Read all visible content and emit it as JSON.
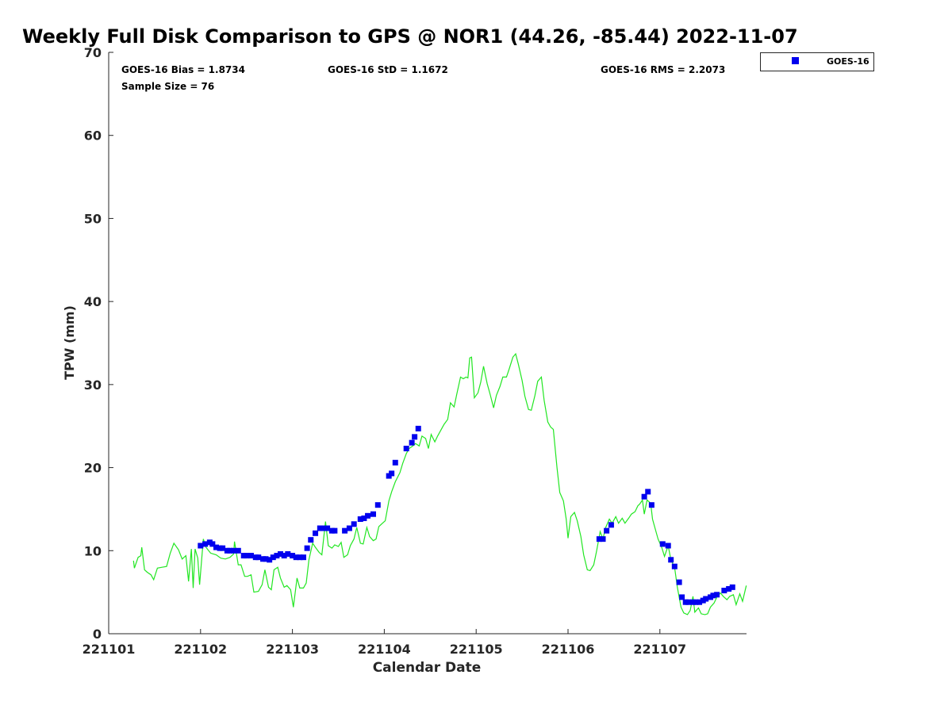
{
  "chart_data": {
    "type": "line",
    "title": "Weekly Full Disk Comparison to GPS @ NOR1 (44.26, -85.44) 2022-11-07",
    "xlabel": "Calendar Date",
    "ylabel": "TPW (mm)",
    "x_units": "days since 221101",
    "xlim": [
      0,
      6.94
    ],
    "ylim": [
      0,
      70
    ],
    "x_ticks": [
      0,
      1,
      2,
      3,
      4,
      5,
      6
    ],
    "x_tick_labels": [
      "221101",
      "221102",
      "221103",
      "221104",
      "221105",
      "221106",
      "221107"
    ],
    "y_ticks": [
      0,
      10,
      20,
      30,
      40,
      50,
      60,
      70
    ],
    "y_tick_labels": [
      "0",
      "10",
      "20",
      "30",
      "40",
      "50",
      "60",
      "70"
    ],
    "grid": false,
    "legend": {
      "placement": "top-right-outside",
      "entries": [
        "GOES-16"
      ]
    },
    "stats": {
      "bias": "GOES-16 Bias = 1.8734",
      "std": "GOES-16 StD = 1.1672",
      "rms": "GOES-16 RMS = 2.2073",
      "sample": "Sample Size = 76"
    },
    "series": [
      {
        "name": "GPS",
        "style": "line",
        "color": "#22e622",
        "points": [
          [
            0.27,
            8.8
          ],
          [
            0.28,
            7.9
          ],
          [
            0.32,
            9.2
          ],
          [
            0.35,
            9.4
          ],
          [
            0.36,
            10.4
          ],
          [
            0.39,
            7.7
          ],
          [
            0.42,
            7.4
          ],
          [
            0.46,
            7.1
          ],
          [
            0.49,
            6.5
          ],
          [
            0.53,
            7.9
          ],
          [
            0.58,
            8.0
          ],
          [
            0.63,
            8.1
          ],
          [
            0.67,
            9.7
          ],
          [
            0.71,
            10.9
          ],
          [
            0.76,
            10.1
          ],
          [
            0.8,
            9.0
          ],
          [
            0.84,
            9.4
          ],
          [
            0.87,
            6.3
          ],
          [
            0.9,
            10.2
          ],
          [
            0.92,
            5.5
          ],
          [
            0.94,
            10.2
          ],
          [
            0.97,
            9.1
          ],
          [
            0.99,
            5.9
          ],
          [
            1.03,
            11.4
          ],
          [
            1.06,
            10.4
          ],
          [
            1.11,
            9.7
          ],
          [
            1.17,
            9.5
          ],
          [
            1.22,
            9.1
          ],
          [
            1.27,
            9.0
          ],
          [
            1.32,
            9.2
          ],
          [
            1.36,
            9.6
          ],
          [
            1.37,
            11.1
          ],
          [
            1.41,
            8.3
          ],
          [
            1.44,
            8.3
          ],
          [
            1.48,
            6.9
          ],
          [
            1.51,
            6.9
          ],
          [
            1.55,
            7.1
          ],
          [
            1.58,
            5.0
          ],
          [
            1.63,
            5.1
          ],
          [
            1.67,
            5.9
          ],
          [
            1.7,
            7.7
          ],
          [
            1.74,
            5.6
          ],
          [
            1.77,
            5.3
          ],
          [
            1.8,
            7.7
          ],
          [
            1.84,
            8.0
          ],
          [
            1.87,
            6.7
          ],
          [
            1.91,
            5.6
          ],
          [
            1.94,
            5.8
          ],
          [
            1.98,
            5.3
          ],
          [
            2.01,
            3.2
          ],
          [
            2.05,
            6.7
          ],
          [
            2.08,
            5.5
          ],
          [
            2.12,
            5.5
          ],
          [
            2.15,
            6.1
          ],
          [
            2.18,
            8.9
          ],
          [
            2.22,
            10.9
          ],
          [
            2.25,
            10.4
          ],
          [
            2.29,
            9.8
          ],
          [
            2.32,
            9.5
          ],
          [
            2.36,
            13.5
          ],
          [
            2.39,
            10.6
          ],
          [
            2.43,
            10.3
          ],
          [
            2.46,
            10.7
          ],
          [
            2.5,
            10.5
          ],
          [
            2.53,
            11.0
          ],
          [
            2.56,
            9.2
          ],
          [
            2.6,
            9.5
          ],
          [
            2.63,
            10.6
          ],
          [
            2.67,
            11.4
          ],
          [
            2.7,
            12.8
          ],
          [
            2.74,
            10.9
          ],
          [
            2.77,
            10.8
          ],
          [
            2.81,
            12.8
          ],
          [
            2.84,
            11.7
          ],
          [
            2.88,
            11.2
          ],
          [
            2.91,
            11.4
          ],
          [
            2.94,
            12.9
          ],
          [
            2.98,
            13.3
          ],
          [
            3.01,
            13.6
          ],
          [
            3.05,
            16.0
          ],
          [
            3.08,
            17.1
          ],
          [
            3.12,
            18.3
          ],
          [
            3.17,
            19.4
          ],
          [
            3.2,
            20.5
          ],
          [
            3.24,
            21.7
          ],
          [
            3.27,
            22.3
          ],
          [
            3.31,
            22.6
          ],
          [
            3.34,
            22.9
          ],
          [
            3.38,
            22.6
          ],
          [
            3.41,
            23.8
          ],
          [
            3.45,
            23.5
          ],
          [
            3.48,
            22.3
          ],
          [
            3.51,
            24.0
          ],
          [
            3.55,
            23.1
          ],
          [
            3.58,
            23.8
          ],
          [
            3.62,
            24.6
          ],
          [
            3.65,
            25.2
          ],
          [
            3.69,
            25.8
          ],
          [
            3.72,
            27.8
          ],
          [
            3.76,
            27.3
          ],
          [
            3.79,
            28.9
          ],
          [
            3.83,
            30.9
          ],
          [
            3.86,
            30.7
          ],
          [
            3.89,
            30.9
          ],
          [
            3.91,
            30.8
          ],
          [
            3.93,
            33.2
          ],
          [
            3.95,
            33.3
          ],
          [
            3.98,
            28.4
          ],
          [
            4.02,
            29.0
          ],
          [
            4.05,
            30.3
          ],
          [
            4.08,
            32.2
          ],
          [
            4.12,
            30.1
          ],
          [
            4.15,
            28.9
          ],
          [
            4.19,
            27.2
          ],
          [
            4.22,
            28.7
          ],
          [
            4.26,
            29.8
          ],
          [
            4.29,
            30.9
          ],
          [
            4.33,
            30.9
          ],
          [
            4.36,
            31.9
          ],
          [
            4.4,
            33.3
          ],
          [
            4.43,
            33.7
          ],
          [
            4.46,
            32.4
          ],
          [
            4.5,
            30.5
          ],
          [
            4.53,
            28.6
          ],
          [
            4.57,
            27.0
          ],
          [
            4.6,
            26.9
          ],
          [
            4.64,
            28.7
          ],
          [
            4.67,
            30.4
          ],
          [
            4.71,
            30.9
          ],
          [
            4.74,
            28.1
          ],
          [
            4.78,
            25.5
          ],
          [
            4.81,
            24.9
          ],
          [
            4.84,
            24.6
          ],
          [
            4.88,
            20.0
          ],
          [
            4.91,
            17.0
          ],
          [
            4.95,
            16.0
          ],
          [
            4.98,
            13.8
          ],
          [
            5.0,
            11.5
          ],
          [
            5.03,
            14.1
          ],
          [
            5.07,
            14.6
          ],
          [
            5.1,
            13.6
          ],
          [
            5.14,
            11.7
          ],
          [
            5.17,
            9.5
          ],
          [
            5.21,
            7.7
          ],
          [
            5.24,
            7.6
          ],
          [
            5.28,
            8.3
          ],
          [
            5.31,
            9.9
          ],
          [
            5.35,
            12.3
          ],
          [
            5.38,
            11.4
          ],
          [
            5.41,
            12.8
          ],
          [
            5.45,
            13.8
          ],
          [
            5.48,
            13.3
          ],
          [
            5.52,
            14.1
          ],
          [
            5.55,
            13.3
          ],
          [
            5.59,
            13.9
          ],
          [
            5.62,
            13.3
          ],
          [
            5.66,
            13.9
          ],
          [
            5.69,
            14.4
          ],
          [
            5.73,
            14.7
          ],
          [
            5.76,
            15.4
          ],
          [
            5.78,
            15.6
          ],
          [
            5.81,
            16.1
          ],
          [
            5.83,
            14.4
          ],
          [
            5.86,
            16.1
          ],
          [
            5.9,
            15.7
          ],
          [
            5.92,
            13.8
          ],
          [
            5.95,
            12.6
          ],
          [
            5.98,
            11.4
          ],
          [
            6.02,
            10.4
          ],
          [
            6.05,
            9.3
          ],
          [
            6.09,
            10.6
          ],
          [
            6.12,
            8.9
          ],
          [
            6.16,
            8.0
          ],
          [
            6.19,
            5.6
          ],
          [
            6.23,
            3.2
          ],
          [
            6.26,
            2.5
          ],
          [
            6.3,
            2.3
          ],
          [
            6.33,
            2.8
          ],
          [
            6.36,
            4.5
          ],
          [
            6.38,
            2.6
          ],
          [
            6.42,
            3.1
          ],
          [
            6.45,
            2.4
          ],
          [
            6.49,
            2.3
          ],
          [
            6.52,
            2.4
          ],
          [
            6.55,
            3.2
          ],
          [
            6.59,
            3.7
          ],
          [
            6.62,
            4.4
          ],
          [
            6.66,
            4.9
          ],
          [
            6.69,
            4.5
          ],
          [
            6.73,
            4.1
          ],
          [
            6.76,
            4.5
          ],
          [
            6.8,
            4.7
          ],
          [
            6.83,
            3.5
          ],
          [
            6.87,
            4.8
          ],
          [
            6.9,
            3.9
          ],
          [
            6.94,
            5.8
          ]
        ]
      },
      {
        "name": "GOES-16",
        "style": "square-marker",
        "color": "#0000ee",
        "points": [
          [
            1.0,
            10.6
          ],
          [
            1.05,
            10.8
          ],
          [
            1.1,
            11.0
          ],
          [
            1.13,
            10.8
          ],
          [
            1.17,
            10.4
          ],
          [
            1.21,
            10.3
          ],
          [
            1.24,
            10.3
          ],
          [
            1.29,
            10.0
          ],
          [
            1.32,
            10.0
          ],
          [
            1.36,
            10.0
          ],
          [
            1.41,
            10.0
          ],
          [
            1.47,
            9.4
          ],
          [
            1.5,
            9.4
          ],
          [
            1.55,
            9.4
          ],
          [
            1.6,
            9.2
          ],
          [
            1.63,
            9.2
          ],
          [
            1.68,
            9.0
          ],
          [
            1.71,
            9.0
          ],
          [
            1.75,
            8.9
          ],
          [
            1.79,
            9.2
          ],
          [
            1.83,
            9.4
          ],
          [
            1.87,
            9.6
          ],
          [
            1.91,
            9.4
          ],
          [
            1.95,
            9.6
          ],
          [
            2.0,
            9.4
          ],
          [
            2.04,
            9.2
          ],
          [
            2.08,
            9.2
          ],
          [
            2.12,
            9.2
          ],
          [
            2.16,
            10.3
          ],
          [
            2.2,
            11.3
          ],
          [
            2.25,
            12.1
          ],
          [
            2.3,
            12.7
          ],
          [
            2.34,
            12.7
          ],
          [
            2.38,
            12.7
          ],
          [
            2.43,
            12.4
          ],
          [
            2.46,
            12.4
          ],
          [
            2.57,
            12.4
          ],
          [
            2.62,
            12.7
          ],
          [
            2.67,
            13.2
          ],
          [
            2.74,
            13.8
          ],
          [
            2.78,
            13.9
          ],
          [
            2.82,
            14.2
          ],
          [
            2.88,
            14.4
          ],
          [
            2.93,
            15.5
          ],
          [
            3.05,
            19.0
          ],
          [
            3.08,
            19.3
          ],
          [
            3.12,
            20.6
          ],
          [
            3.24,
            22.3
          ],
          [
            3.3,
            23.0
          ],
          [
            3.33,
            23.7
          ],
          [
            3.37,
            24.7
          ],
          [
            5.34,
            11.4
          ],
          [
            5.38,
            11.4
          ],
          [
            5.42,
            12.4
          ],
          [
            5.47,
            13.1
          ],
          [
            5.83,
            16.5
          ],
          [
            5.87,
            17.1
          ],
          [
            5.91,
            15.5
          ],
          [
            6.03,
            10.8
          ],
          [
            6.09,
            10.6
          ],
          [
            6.12,
            8.9
          ],
          [
            6.16,
            8.1
          ],
          [
            6.21,
            6.2
          ],
          [
            6.24,
            4.4
          ],
          [
            6.28,
            3.8
          ],
          [
            6.31,
            3.8
          ],
          [
            6.36,
            3.8
          ],
          [
            6.39,
            3.8
          ],
          [
            6.43,
            3.8
          ],
          [
            6.47,
            4.0
          ],
          [
            6.5,
            4.2
          ],
          [
            6.55,
            4.4
          ],
          [
            6.58,
            4.6
          ],
          [
            6.62,
            4.7
          ],
          [
            6.7,
            5.2
          ],
          [
            6.75,
            5.4
          ],
          [
            6.79,
            5.6
          ]
        ]
      }
    ]
  }
}
